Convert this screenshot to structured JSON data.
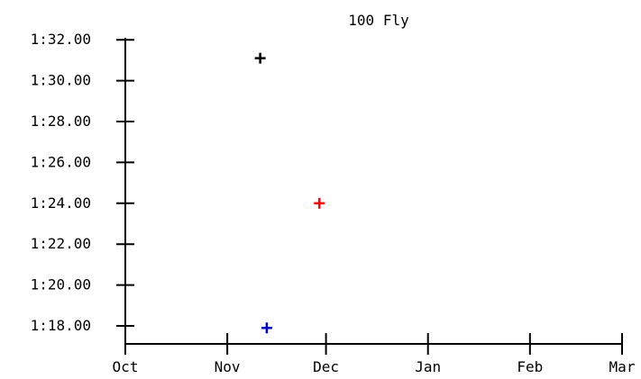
{
  "chart_data": {
    "type": "scatter",
    "title": "100 Fly",
    "xlabel": "",
    "ylabel": "",
    "x_tick_labels": [
      "Oct",
      "Nov",
      "Dec",
      "Jan",
      "Feb",
      "Mar"
    ],
    "xlim": [
      "Oct",
      "Mar"
    ],
    "y_tick_values": [
      78,
      80,
      82,
      84,
      86,
      88,
      90,
      92
    ],
    "y_tick_labels": [
      "1:18.00",
      "1:20.00",
      "1:22.00",
      "1:24.00",
      "1:26.00",
      "1:28.00",
      "1:30.00",
      "1:32.00"
    ],
    "ylim": [
      77.2,
      93.0
    ],
    "marker": "plus",
    "points": [
      {
        "date": "Nov 11",
        "time": 91.1,
        "color": "#000000"
      },
      {
        "date": "Nov 29",
        "time": 84.0,
        "color": "#ff0000"
      },
      {
        "date": "Nov 13",
        "time": 77.9,
        "color": "#0000cc"
      }
    ],
    "grid": false,
    "legend": "none"
  }
}
